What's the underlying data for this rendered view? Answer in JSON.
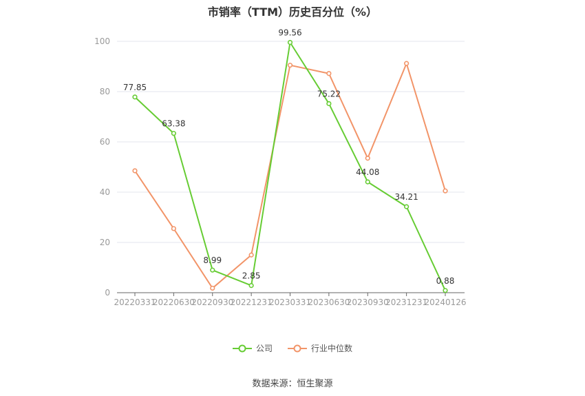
{
  "title": "市销率（TTM）历史百分位（%）",
  "source": "数据来源：恒生聚源",
  "colors": {
    "company": "#66cc33",
    "industry": "#f29468",
    "grid": "#e3e6ee",
    "axis": "#999999",
    "label": "#333333"
  },
  "chart_data": {
    "type": "line",
    "categories": [
      "20220331",
      "20220630",
      "20220930",
      "20221231",
      "20230331",
      "20230630",
      "20230930",
      "20231231",
      "20240126"
    ],
    "ylim": [
      0,
      100
    ],
    "yticks": [
      0,
      20,
      40,
      60,
      80,
      100
    ],
    "grid": true,
    "legend_position": "bottom",
    "series": [
      {
        "name": "公司",
        "color": "#66cc33",
        "values": [
          77.85,
          63.38,
          8.99,
          2.85,
          99.56,
          75.22,
          44.08,
          34.21,
          0.88
        ],
        "labels": [
          "77.85",
          "63.38",
          "8.99",
          "2.85",
          "99.56",
          "75.22",
          "44.08",
          "34.21",
          "0.88"
        ]
      },
      {
        "name": "行业中位数",
        "color": "#f29468",
        "values": [
          48.5,
          25.5,
          1.8,
          15.0,
          90.5,
          87.2,
          53.5,
          91.2,
          40.5
        ]
      }
    ]
  }
}
